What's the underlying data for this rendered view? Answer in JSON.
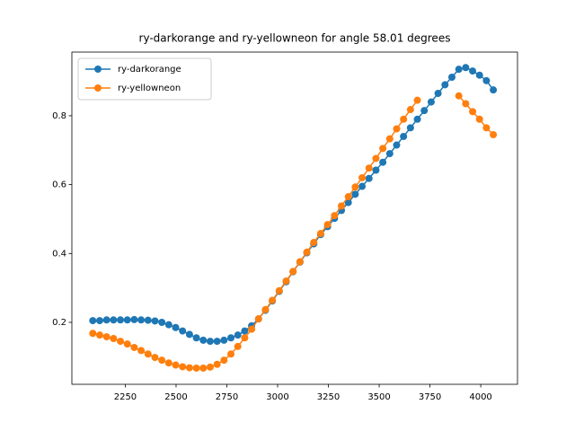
{
  "chart_data": {
    "type": "line",
    "title": "ry-darkorange and ry-yellowneon for angle 58.01 degrees",
    "x": [
      2090,
      2124,
      2158,
      2192,
      2226,
      2260,
      2294,
      2328,
      2362,
      2396,
      2430,
      2464,
      2498,
      2532,
      2566,
      2600,
      2634,
      2668,
      2702,
      2736,
      2770,
      2804,
      2838,
      2872,
      2906,
      2940,
      2974,
      3008,
      3042,
      3076,
      3110,
      3144,
      3178,
      3212,
      3246,
      3280,
      3314,
      3348,
      3382,
      3416,
      3450,
      3484,
      3518,
      3552,
      3586,
      3620,
      3654,
      3688,
      3722,
      3756,
      3790,
      3824,
      3858,
      3892,
      3926,
      3960,
      3994,
      4028,
      4062
    ],
    "series": [
      {
        "name": "ry-darkorange",
        "color": "#1f77b4",
        "values": [
          0.205,
          0.205,
          0.207,
          0.207,
          0.207,
          0.207,
          0.208,
          0.207,
          0.206,
          0.204,
          0.2,
          0.193,
          0.185,
          0.175,
          0.165,
          0.155,
          0.148,
          0.145,
          0.145,
          0.148,
          0.155,
          0.163,
          0.175,
          0.19,
          0.21,
          0.235,
          0.262,
          0.29,
          0.318,
          0.347,
          0.375,
          0.402,
          0.428,
          0.455,
          0.478,
          0.502,
          0.525,
          0.548,
          0.572,
          0.595,
          0.618,
          0.642,
          0.665,
          0.69,
          0.715,
          0.74,
          0.765,
          0.79,
          0.815,
          0.84,
          0.865,
          0.89,
          0.912,
          0.935,
          0.94,
          0.93,
          0.918,
          0.902,
          0.875
        ]
      },
      {
        "name": "ry-yellowneon",
        "color": "#ff7f0e",
        "values": [
          0.168,
          0.163,
          0.158,
          0.153,
          0.145,
          0.137,
          0.127,
          0.118,
          0.108,
          0.098,
          0.09,
          0.082,
          0.076,
          0.071,
          0.068,
          0.067,
          0.067,
          0.07,
          0.078,
          0.09,
          0.108,
          0.13,
          0.155,
          0.18,
          0.21,
          0.237,
          0.264,
          0.292,
          0.32,
          0.348,
          0.376,
          0.404,
          0.432,
          0.458,
          0.484,
          0.51,
          0.538,
          0.565,
          0.593,
          0.62,
          0.648,
          0.676,
          0.705,
          0.733,
          0.762,
          0.79,
          0.818,
          0.845,
          null,
          null,
          null,
          null,
          null,
          0.858,
          0.835,
          0.812,
          0.79,
          0.765,
          0.745
        ]
      }
    ],
    "xlim": [
      1987,
      4181
    ],
    "ylim": [
      0.02,
      0.985
    ],
    "xticks": [
      2250,
      2500,
      2750,
      3000,
      3250,
      3500,
      3750,
      4000
    ],
    "yticks": [
      0.2,
      0.4,
      0.6,
      0.8
    ],
    "legend": "upper left"
  }
}
